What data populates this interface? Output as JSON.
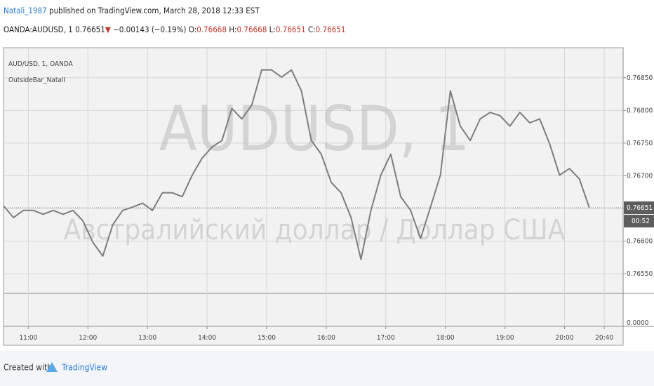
{
  "header": {
    "author": "Natali_1987",
    "published": "published on TradingView.com, March 28, 2018 12:33 EST"
  },
  "quote": {
    "symbol": "OANDA:AUDUSD, 1",
    "last": "0.76651",
    "arrow": "▼",
    "change": "−0.00143 (−0.19%)",
    "open_label": "O:",
    "open": "0.76668",
    "high_label": "H:",
    "high": "0.76668",
    "low_label": "L:",
    "low": "0.76651",
    "close_label": "C:",
    "close": "0.76651"
  },
  "chart_data": {
    "type": "line",
    "legend_title": "AUD/USD, 1, OANDA",
    "indicator": "OutsideBar_NatalI",
    "watermark": "AUDUSD, 1",
    "watermark_subtitle": "Австралийский доллар / Доллар США",
    "x": [
      635,
      645,
      655,
      665,
      675,
      685,
      695,
      705,
      715,
      725,
      735,
      745,
      755,
      765,
      775,
      785,
      795,
      805,
      815,
      825,
      835,
      845,
      855,
      865,
      875,
      885,
      895,
      905,
      915,
      925,
      935,
      945,
      955,
      965,
      975,
      985,
      995,
      1005,
      1015,
      1025,
      1035,
      1045,
      1055,
      1065,
      1075,
      1085,
      1095,
      1105,
      1115,
      1125,
      1135,
      1145,
      1155,
      1165,
      1175,
      1185,
      1195,
      1205,
      1215,
      1225
    ],
    "series": [
      {
        "name": "AUD/USD, 1, OANDA",
        "color": "#7d7d7d",
        "values": [
          0.76654,
          0.76636,
          0.76647,
          0.76647,
          0.76641,
          0.76647,
          0.76641,
          0.76647,
          0.76631,
          0.76598,
          0.76577,
          0.76625,
          0.76647,
          0.76652,
          0.76658,
          0.76647,
          0.76674,
          0.76674,
          0.76668,
          0.76701,
          0.76727,
          0.76744,
          0.76754,
          0.76803,
          0.76787,
          0.76808,
          0.76862,
          0.76862,
          0.76851,
          0.76862,
          0.7683,
          0.76754,
          0.76733,
          0.7669,
          0.76674,
          0.76636,
          0.76572,
          0.76647,
          0.76701,
          0.76733,
          0.76668,
          0.76647,
          0.76604,
          0.76652,
          0.76701,
          0.7683,
          0.76776,
          0.76754,
          0.76787,
          0.76797,
          0.76792,
          0.76776,
          0.76797,
          0.76781,
          0.76787,
          0.76749,
          0.76701,
          0.76711,
          0.76695,
          0.76651
        ]
      }
    ],
    "last_price": 0.76651,
    "countdown": "00:52",
    "xlim": [
      635,
      1259
    ],
    "xticks": [
      {
        "value": 660,
        "label": "11:00"
      },
      {
        "value": 720,
        "label": "12:00"
      },
      {
        "value": 780,
        "label": "13:00"
      },
      {
        "value": 840,
        "label": "14:00"
      },
      {
        "value": 900,
        "label": "15:00"
      },
      {
        "value": 960,
        "label": "16:00"
      },
      {
        "value": 1020,
        "label": "17:00"
      },
      {
        "value": 1080,
        "label": "18:00"
      },
      {
        "value": 1140,
        "label": "19:00"
      },
      {
        "value": 1200,
        "label": "20:00"
      },
      {
        "value": 1240,
        "label": "20:40"
      }
    ],
    "ylim": [
      0.7652,
      0.76896
    ],
    "yticks": [
      {
        "value": 0.7655,
        "label": "0.76550"
      },
      {
        "value": 0.766,
        "label": "0.76600"
      },
      {
        "value": 0.7665,
        "label": "0.76650"
      },
      {
        "value": 0.767,
        "label": "0.76700"
      },
      {
        "value": 0.7675,
        "label": "0.76750"
      },
      {
        "value": 0.768,
        "label": "0.76800"
      },
      {
        "value": 0.7685,
        "label": "0.76850"
      }
    ],
    "indicator_pane_tick": "0.0000",
    "grid": true
  },
  "footer": {
    "created": "Created with",
    "brand": "TradingView"
  }
}
